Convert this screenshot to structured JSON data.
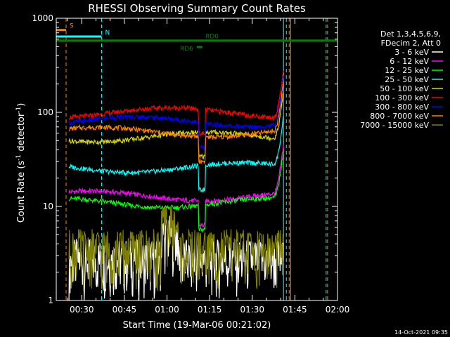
{
  "chart_data": {
    "type": "line",
    "title": "RHESSI Observing Summary Count Rates",
    "xlabel": "Start Time (19-Mar-06 00:21:02)",
    "ylabel_main": "Count Rate (s",
    "ylabel_sup1": "-1",
    "ylabel_mid": " detector",
    "ylabel_sup2": "-1",
    "ylabel_end": ")",
    "y_scale": "log",
    "ylim": [
      1,
      1000
    ],
    "xlim": [
      "00:21:02",
      "02:00:00"
    ],
    "y_ticks": [
      "1",
      "10",
      "100",
      "1000"
    ],
    "x_ticks": [
      "00:30",
      "00:45",
      "01:00",
      "01:15",
      "01:30",
      "01:45",
      "02:00"
    ],
    "legend_title_1": "Det 1,3,4,5,6,9,",
    "legend_title_2": "FDecim 2, Att 0",
    "legend_placement": "right",
    "series": [
      {
        "name": "3 - 6 keV",
        "color": "#ffffff",
        "level": 2.2
      },
      {
        "name": "6 - 12 keV",
        "color": "#ff00ff",
        "level": 13
      },
      {
        "name": "12 - 25 keV",
        "color": "#00ff00",
        "level": 11
      },
      {
        "name": "25 - 50 keV",
        "color": "#00ffff",
        "level": 26
      },
      {
        "name": "50 - 100 keV",
        "color": "#d8d800",
        "level": 55
      },
      {
        "name": "100 - 300 keV",
        "color": "#ff0000",
        "level": 100
      },
      {
        "name": "300 - 800 keV",
        "color": "#0000ff",
        "level": 80
      },
      {
        "name": "800 - 7000 keV",
        "color": "#ff8000",
        "level": 62
      },
      {
        "name": "7000 - 15000 keV",
        "color": "#808000",
        "level": 2.8
      }
    ],
    "flags": [
      {
        "label": "S",
        "color": "#ff8000",
        "start": "00:21:02",
        "end": "00:24:30",
        "y": 750
      },
      {
        "label": "N",
        "color": "#00ffff",
        "start": "00:21:02",
        "end": "00:37:00",
        "y": 640
      },
      {
        "label": "RD0",
        "color": "#008000",
        "start": "00:21:02",
        "end": "02:00:00",
        "y": 580
      },
      {
        "label": "RD6",
        "color": "#008000",
        "start": "01:10:30",
        "end": "01:12:30",
        "y": 495
      }
    ],
    "timestamp": "14-Oct-2021 09:35"
  }
}
